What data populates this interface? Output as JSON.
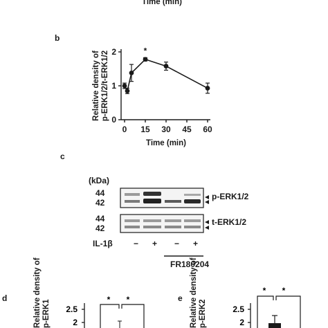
{
  "top_fragment": {
    "xlabel": "Time (min)"
  },
  "panel_labels": {
    "b": "b",
    "c": "c",
    "d": "d",
    "e": "e"
  },
  "chart_data": [
    {
      "panel": "b",
      "type": "line",
      "title": "",
      "xlabel": "Time (min)",
      "ylabel": "Relative density of p-ERK1/2/t-ERK1/2",
      "ylabel_lines": [
        "Relative density of",
        "p-ERK1/2/t-ERK1/2"
      ],
      "xlim": [
        0,
        60
      ],
      "ylim": [
        0,
        2
      ],
      "xticks": [
        0,
        15,
        30,
        45,
        60
      ],
      "yticks": [
        0,
        1,
        2
      ],
      "grid": false,
      "series": [
        {
          "x": [
            0,
            2,
            5,
            15,
            30,
            60
          ],
          "y": [
            1.0,
            0.85,
            1.38,
            1.78,
            1.58,
            0.93
          ],
          "err": [
            0.08,
            0.08,
            0.25,
            0.05,
            0.12,
            0.15
          ]
        }
      ],
      "annotations": [
        {
          "x": 15,
          "text": "*"
        }
      ]
    },
    {
      "panel": "d",
      "type": "bar",
      "title": "",
      "ylabel": "Relative density of p-ERK1",
      "ylabel_visible": [
        "Relative density of",
        "p-ERK1"
      ],
      "ylim": [
        0,
        2.5
      ],
      "yticks": [
        2,
        2.5
      ],
      "significance": [
        "*",
        "*"
      ],
      "partial": true
    },
    {
      "panel": "e",
      "type": "bar",
      "title": "",
      "ylabel": "Relative density of p-ERK2",
      "ylabel_visible": [
        "Relative density of",
        "p-ERK2"
      ],
      "ylim": [
        0,
        2.5
      ],
      "yticks": [
        2,
        2.5
      ],
      "significance": [
        "*",
        "*"
      ],
      "partial": true
    }
  ],
  "blot": {
    "unit_label": "(kDa)",
    "rows": [
      {
        "label": "p-ERK1/2",
        "markers": [
          "44",
          "42"
        ]
      },
      {
        "label": "t-ERK1/2",
        "markers": [
          "44",
          "42"
        ]
      }
    ],
    "treatment_label": "IL-1β",
    "treatment_signs": [
      "−",
      "+",
      "−",
      "+"
    ],
    "inhibitor_label": "FR180204"
  },
  "colors": {
    "ink": "#1a1a1a",
    "band_dark": "#222222",
    "band_light": "#9a9a9a",
    "background": "#ffffff"
  }
}
